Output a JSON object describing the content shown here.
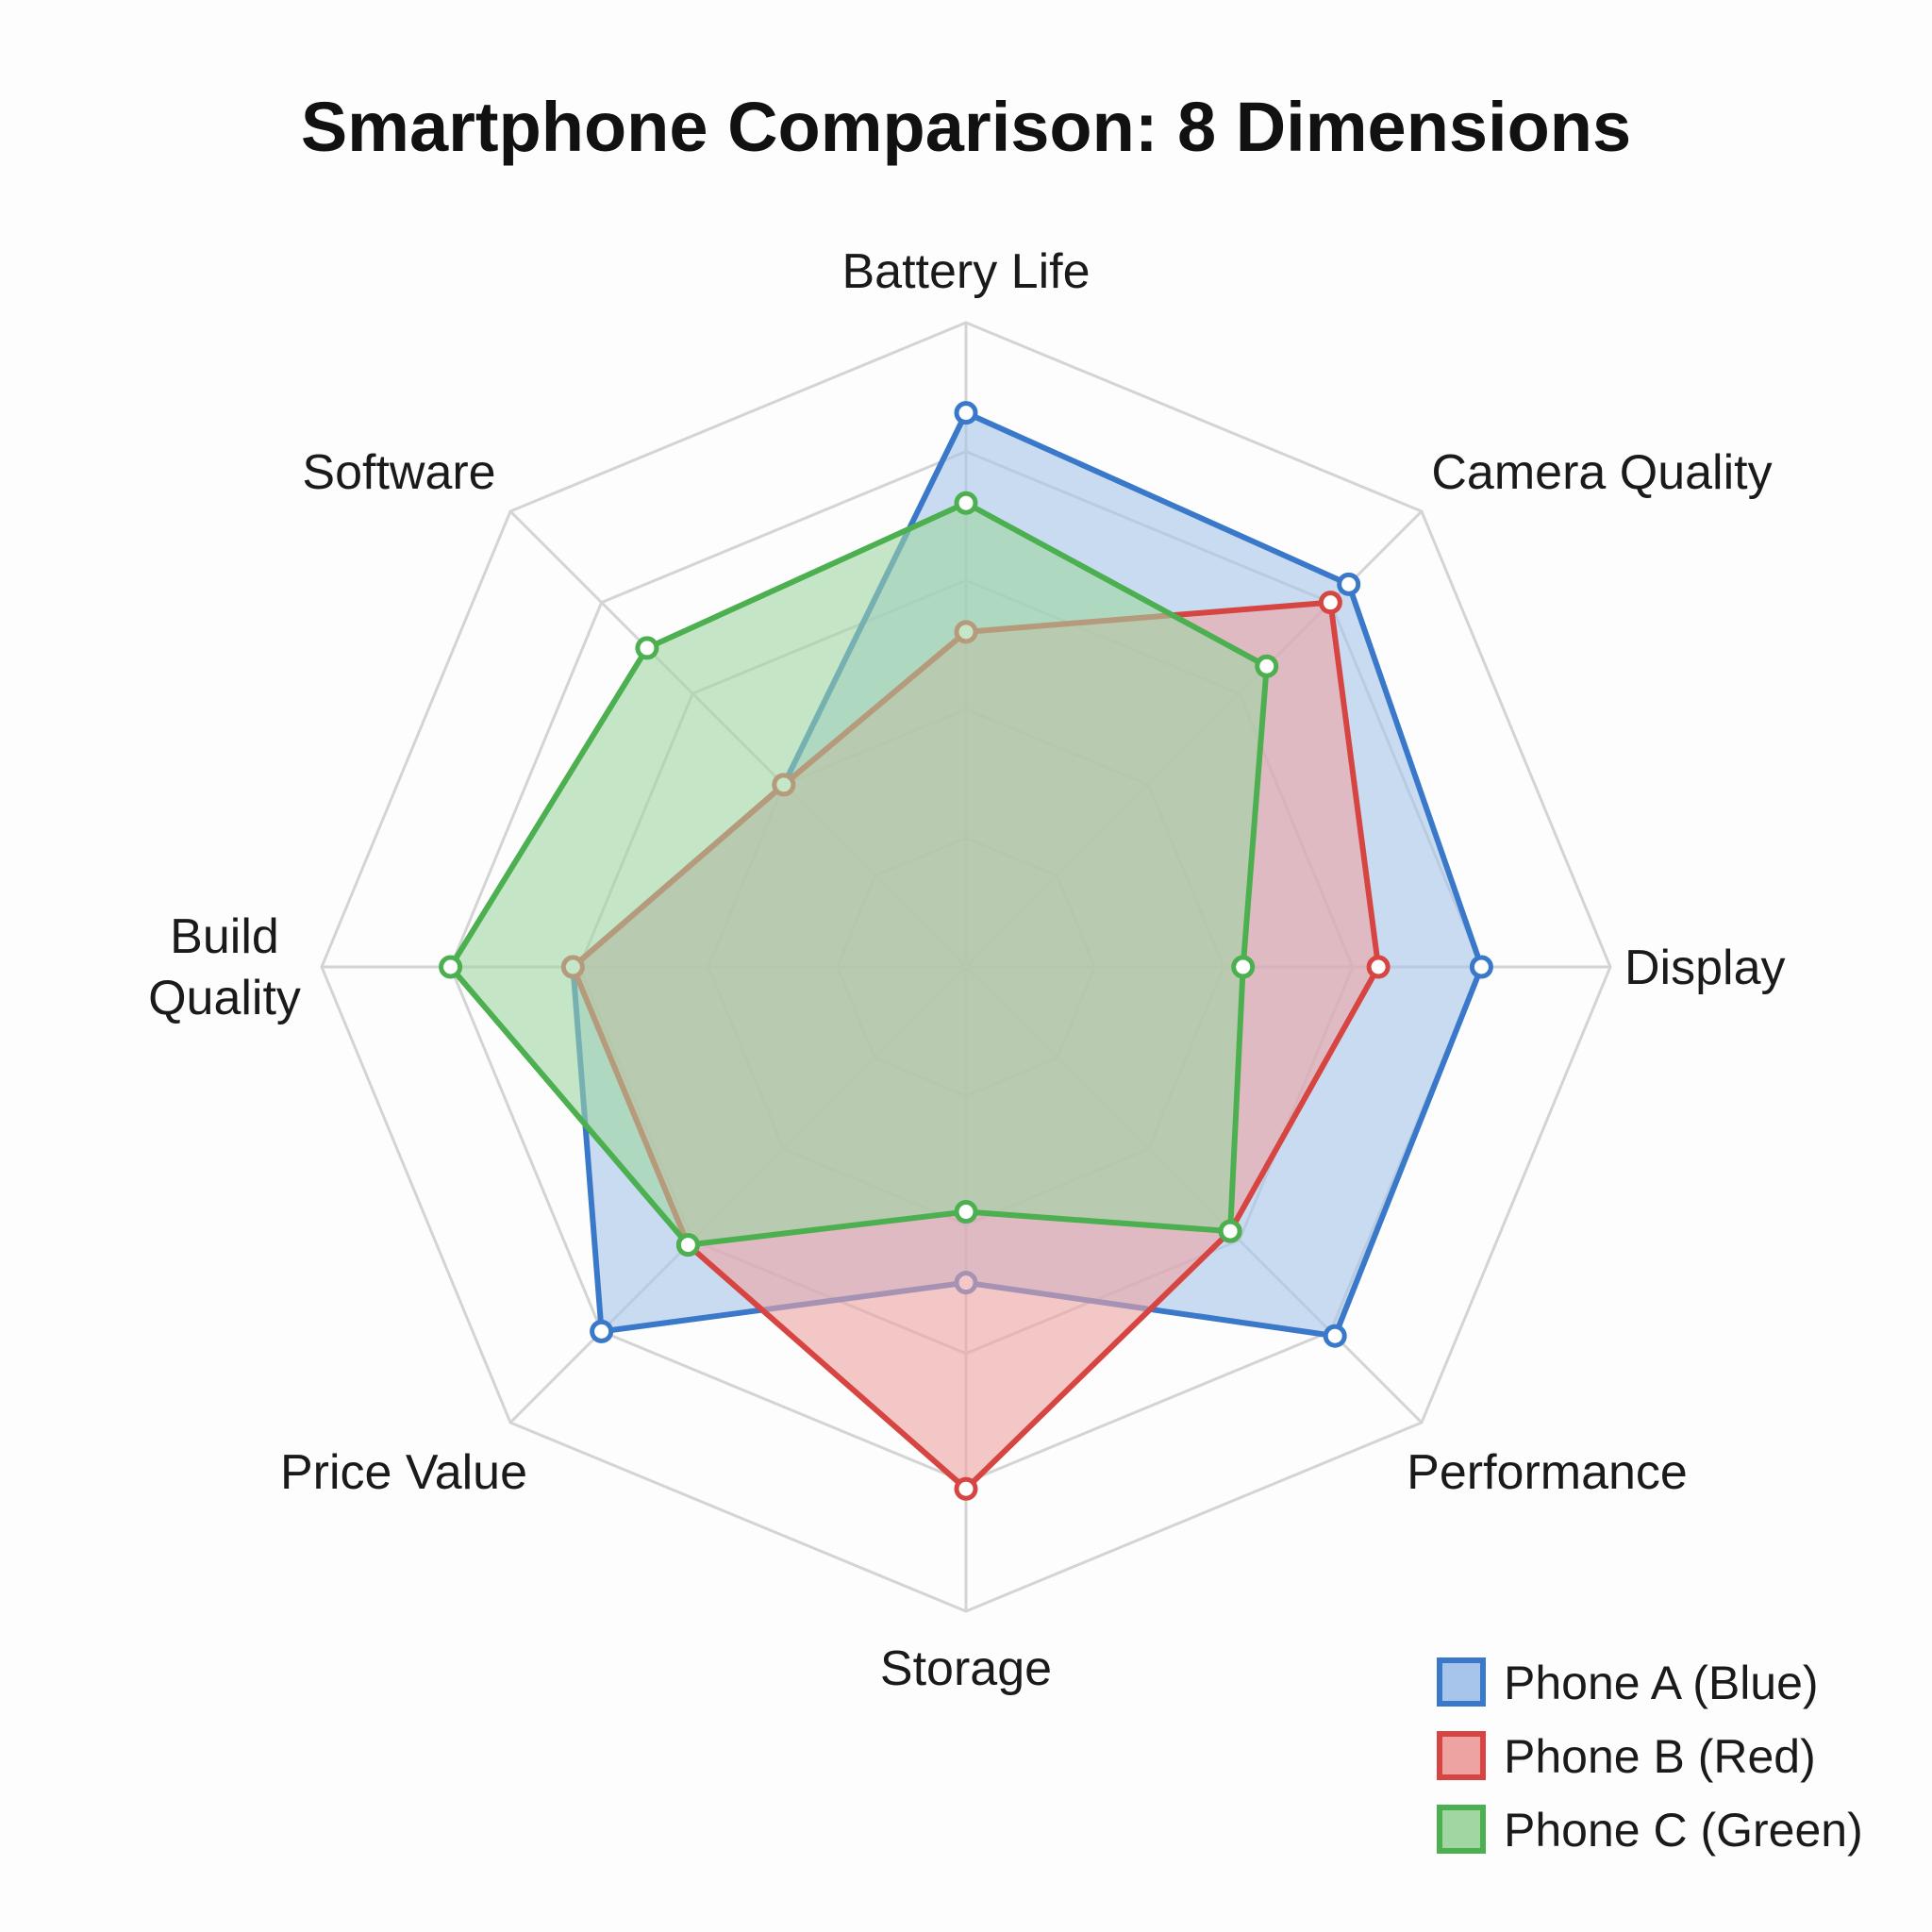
{
  "chart_data": {
    "type": "radar",
    "title": "Smartphone Comparison: 8 Dimensions",
    "axes": [
      "Battery Life",
      "Camera Quality",
      "Display",
      "Performance",
      "Storage",
      "Price Value",
      "Build Quality",
      "Software"
    ],
    "range": [
      0,
      10
    ],
    "grid_levels": 5,
    "grid": true,
    "legend_placement": "bottom-right",
    "series": [
      {
        "name": "Phone A (Blue)",
        "color": "#3a78c9",
        "fill": "#a7c4ea",
        "values": [
          8.6,
          8.4,
          8.0,
          8.1,
          4.9,
          8.0,
          6.1,
          4.0
        ]
      },
      {
        "name": "Phone B (Red)",
        "color": "#d64541",
        "fill": "#eea3a3",
        "values": [
          5.2,
          8.0,
          6.4,
          5.8,
          8.1,
          6.1,
          6.1,
          4.0
        ]
      },
      {
        "name": "Phone C (Green)",
        "color": "#4caf50",
        "fill": "#9fd6a2",
        "values": [
          7.2,
          6.6,
          4.3,
          5.8,
          3.8,
          6.1,
          8.0,
          7.0
        ]
      }
    ]
  }
}
